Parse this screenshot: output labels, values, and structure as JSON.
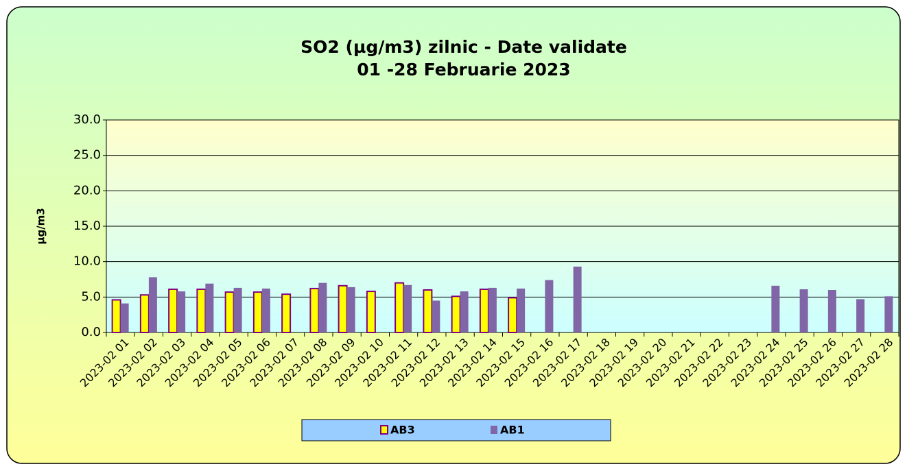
{
  "chart_data": {
    "type": "bar",
    "title": "SO2 (µg/m3) zilnic - Date validate",
    "subtitle": "01 -28  Februarie 2023",
    "y_label": "µg/m3",
    "categories": [
      "2023-02 01",
      "2023-02 02",
      "2023-02 03",
      "2023-02 04",
      "2023-02 05",
      "2023-02 06",
      "2023-02 07",
      "2023-02 08",
      "2023-02 09",
      "2023-02 10",
      "2023-02 11",
      "2023-02 12",
      "2023-02 13",
      "2023-02 14",
      "2023-02 15",
      "2023-02 16",
      "2023-02 17",
      "2023-02 18",
      "2023-02 19",
      "2023-02 20",
      "2023-02 21",
      "2023-02 22",
      "2023-02 23",
      "2023-02 24",
      "2023-02 25",
      "2023-02 26",
      "2023-02 27",
      "2023-02 28"
    ],
    "series": [
      {
        "name": "AB3",
        "color": "#ffff00",
        "values": [
          4.6,
          5.3,
          6.1,
          6.1,
          5.7,
          5.7,
          5.4,
          6.2,
          6.6,
          5.8,
          7.0,
          6.0,
          5.1,
          6.1,
          4.9,
          null,
          null,
          null,
          null,
          null,
          null,
          null,
          null,
          null,
          null,
          null,
          null,
          null
        ]
      },
      {
        "name": "AB1",
        "color": "#8066a6",
        "values": [
          4.1,
          7.8,
          5.8,
          6.9,
          6.3,
          6.2,
          null,
          7.0,
          6.4,
          null,
          6.7,
          4.5,
          5.8,
          6.3,
          6.2,
          7.4,
          9.3,
          null,
          null,
          null,
          null,
          null,
          null,
          6.6,
          6.1,
          6.0,
          4.7,
          5.1
        ]
      }
    ],
    "ylim": [
      0,
      30
    ],
    "yticks": [
      {
        "value": 0,
        "label": "0.0"
      },
      {
        "value": 5,
        "label": "5.0"
      },
      {
        "value": 10,
        "label": "10.0"
      },
      {
        "value": 15,
        "label": "15.0"
      },
      {
        "value": 20,
        "label": "20.0"
      },
      {
        "value": 25,
        "label": "25.0"
      },
      {
        "value": 30,
        "label": "30.0"
      }
    ],
    "grid": true,
    "legend": "bottom"
  }
}
